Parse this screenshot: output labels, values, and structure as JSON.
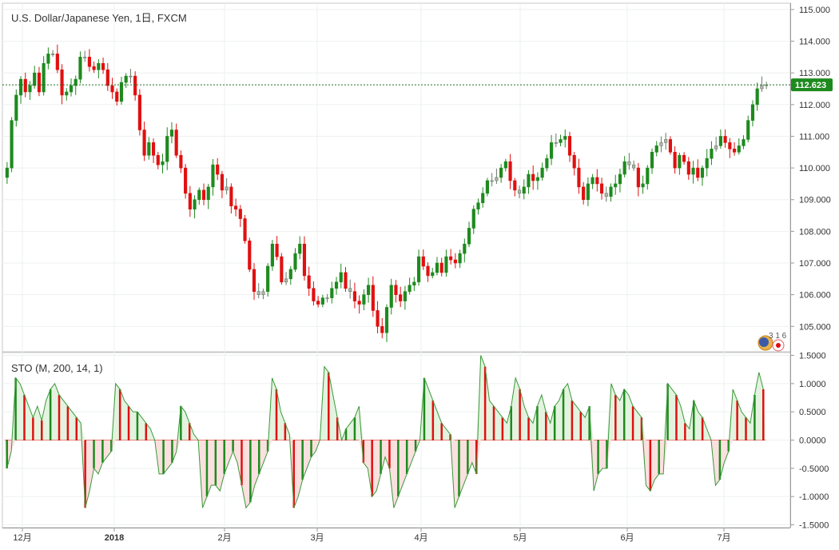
{
  "chart_data": [
    {
      "type": "candlestick",
      "title": "U.S. Dollar/Japanese Yen, 1日, FXCM",
      "y_ticks": [
        "115.000",
        "114.000",
        "113.000",
        "112.000",
        "111.000",
        "110.000",
        "109.000",
        "108.000",
        "107.000",
        "106.000",
        "105.000"
      ],
      "ylim": [
        104.2,
        115.2
      ],
      "x_labels": [
        "12月",
        "2018",
        "2月",
        "3月",
        "4月",
        "5月",
        "6月",
        "7月"
      ],
      "current_price": 112.623,
      "current_price_label": "112.623",
      "up_color": "#1e8a1e",
      "down_color": "#e01010",
      "neutral_color": "#b0b7a8",
      "grid": true,
      "closes": [
        110.0,
        111.5,
        112.3,
        112.8,
        112.4,
        112.6,
        113.0,
        112.4,
        113.3,
        113.6,
        113.6,
        113.1,
        112.3,
        112.4,
        112.6,
        112.8,
        113.5,
        113.5,
        113.2,
        113.1,
        113.3,
        113.1,
        112.6,
        112.4,
        112.1,
        112.7,
        112.9,
        112.9,
        112.3,
        111.2,
        110.4,
        110.8,
        110.4,
        110.1,
        110.2,
        111.0,
        111.2,
        110.4,
        110.0,
        109.2,
        108.7,
        109.0,
        109.3,
        109.0,
        109.4,
        110.1,
        109.8,
        109.3,
        109.4,
        108.8,
        108.7,
        108.4,
        107.7,
        106.8,
        106.1,
        106.0,
        106.1,
        106.9,
        107.6,
        107.2,
        106.4,
        106.5,
        106.8,
        107.3,
        107.6,
        106.6,
        106.2,
        105.8,
        105.7,
        105.9,
        105.9,
        106.2,
        106.4,
        106.7,
        106.2,
        106.1,
        105.8,
        105.7,
        106.0,
        106.3,
        105.5,
        105.0,
        104.8,
        105.6,
        106.3,
        106.0,
        105.8,
        106.1,
        106.3,
        106.4,
        107.2,
        106.9,
        106.6,
        106.7,
        107.0,
        106.7,
        107.2,
        107.1,
        107.0,
        107.3,
        107.6,
        108.1,
        108.7,
        108.9,
        109.2,
        109.6,
        109.6,
        109.7,
        110.0,
        110.2,
        109.6,
        109.3,
        109.2,
        109.4,
        109.8,
        109.6,
        109.7,
        110.0,
        110.3,
        110.8,
        110.8,
        110.9,
        111.0,
        110.4,
        110.0,
        109.4,
        109.0,
        109.5,
        109.7,
        109.5,
        109.2,
        109.1,
        109.4,
        109.5,
        109.8,
        110.2,
        110.1,
        110.0,
        109.4,
        109.5,
        110.0,
        110.5,
        110.7,
        110.8,
        110.9,
        110.5,
        110.0,
        110.4,
        110.2,
        109.8,
        110.0,
        109.7,
        110.0,
        110.3,
        110.6,
        110.7,
        111.0,
        110.8,
        110.6,
        110.5,
        110.7,
        110.9,
        111.5,
        112.0,
        112.5,
        112.6,
        112.623
      ]
    },
    {
      "type": "line",
      "title": "STO (M, 200, 14, 1)",
      "y_ticks": [
        "1.5000",
        "1.0000",
        "0.5000",
        "0.0000",
        "-0.5000",
        "-1.0000",
        "-1.5000"
      ],
      "ylim": [
        -1.55,
        1.55
      ],
      "up_color": "#1e8a1e",
      "down_color": "#e01010",
      "values": [
        -0.5,
        -0.2,
        1.1,
        1.0,
        0.8,
        0.6,
        0.4,
        0.6,
        0.35,
        0.7,
        0.9,
        1.0,
        0.8,
        0.7,
        0.6,
        0.5,
        0.4,
        0.3,
        -1.2,
        -0.9,
        -0.5,
        -0.6,
        -0.4,
        -0.3,
        -0.2,
        1.0,
        0.9,
        0.7,
        0.6,
        0.5,
        0.5,
        0.4,
        0.3,
        0.2,
        0.0,
        -0.6,
        -0.6,
        -0.5,
        -0.4,
        -0.2,
        0.6,
        0.5,
        0.3,
        0.1,
        0.0,
        -1.2,
        -1.0,
        -0.8,
        -0.8,
        -0.9,
        -0.6,
        -0.4,
        -0.2,
        -0.4,
        -0.8,
        -1.2,
        -1.1,
        -0.8,
        -0.6,
        -0.4,
        -0.2,
        1.1,
        0.9,
        0.5,
        0.3,
        0.1,
        -1.2,
        -1.0,
        -0.7,
        -0.5,
        -0.3,
        -0.2,
        0.0,
        1.3,
        1.2,
        0.8,
        0.4,
        0.0,
        0.2,
        0.3,
        0.4,
        0.6,
        -0.4,
        -0.5,
        -1.0,
        -0.9,
        -0.6,
        -0.3,
        -0.5,
        -1.2,
        -1.0,
        -0.8,
        -0.6,
        -0.4,
        -0.2,
        0.0,
        1.1,
        0.9,
        0.7,
        0.5,
        0.3,
        0.2,
        0.1,
        -1.2,
        -1.0,
        -0.8,
        -0.6,
        -0.4,
        -0.6,
        1.5,
        1.3,
        0.7,
        0.6,
        0.5,
        0.4,
        0.3,
        0.6,
        1.1,
        0.9,
        0.6,
        0.4,
        0.3,
        0.6,
        0.8,
        0.5,
        0.3,
        0.6,
        0.7,
        0.9,
        1.0,
        0.7,
        0.6,
        0.5,
        0.4,
        0.6,
        -0.9,
        -0.6,
        -0.5,
        -0.5,
        1.0,
        0.8,
        0.7,
        0.9,
        0.8,
        0.6,
        0.5,
        0.4,
        -0.8,
        -0.9,
        -0.7,
        -0.6,
        -0.6,
        1.0,
        0.9,
        0.8,
        0.6,
        0.3,
        0.2,
        0.7,
        0.5,
        0.4,
        0.2,
        0.0,
        -0.8,
        -0.7,
        -0.4,
        -0.2,
        0.9,
        0.7,
        0.5,
        0.4,
        0.3,
        0.8,
        1.2,
        0.9
      ]
    }
  ],
  "badge": {
    "text": "3 1 6",
    "icon": "us-japan-flag-icon"
  }
}
